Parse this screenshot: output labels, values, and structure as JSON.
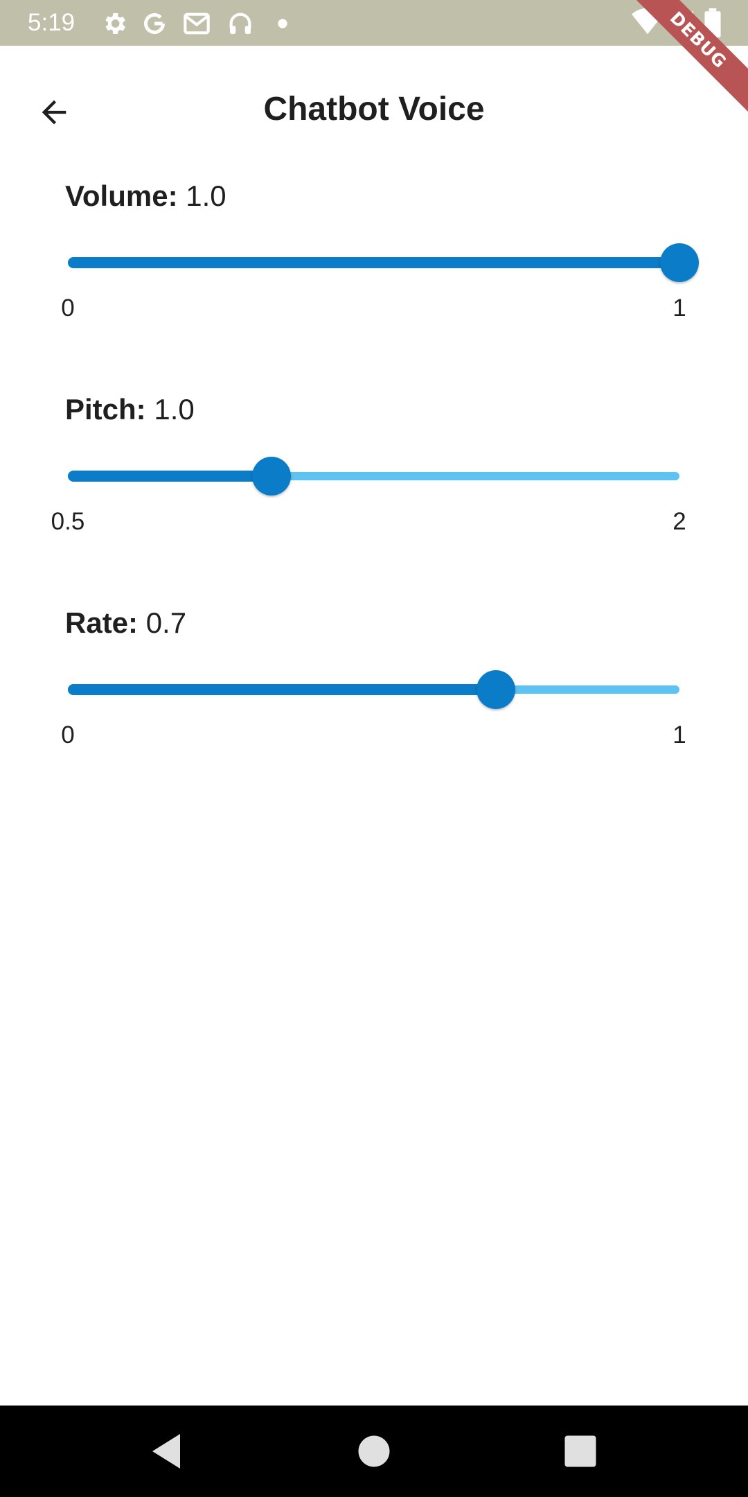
{
  "status_bar": {
    "time": "5:19",
    "left_icons": [
      "settings-icon",
      "google-icon",
      "gmail-icon",
      "headphones-icon",
      "dot-icon"
    ],
    "right_icons": [
      "wifi-icon",
      "signal-icon",
      "battery-icon"
    ]
  },
  "debug_banner": "DEBUG",
  "app_bar": {
    "title": "Chatbot Voice",
    "back_icon": "arrow-back-icon"
  },
  "settings": [
    {
      "name": "Volume:",
      "value": "1.0",
      "min_label": "0",
      "max_label": "1",
      "fraction": 1.0
    },
    {
      "name": "Pitch:",
      "value": "1.0",
      "min_label": "0.5",
      "max_label": "2",
      "fraction": 0.333
    },
    {
      "name": "Rate:",
      "value": "0.7",
      "min_label": "0",
      "max_label": "1",
      "fraction": 0.7
    }
  ],
  "colors": {
    "accent": "#0b7cc8",
    "track_inactive": "#5cc3f2",
    "status_bar": "#bfbfaa"
  },
  "nav_bar": {
    "buttons": [
      "back-triangle-icon",
      "home-circle-icon",
      "recents-square-icon"
    ]
  }
}
